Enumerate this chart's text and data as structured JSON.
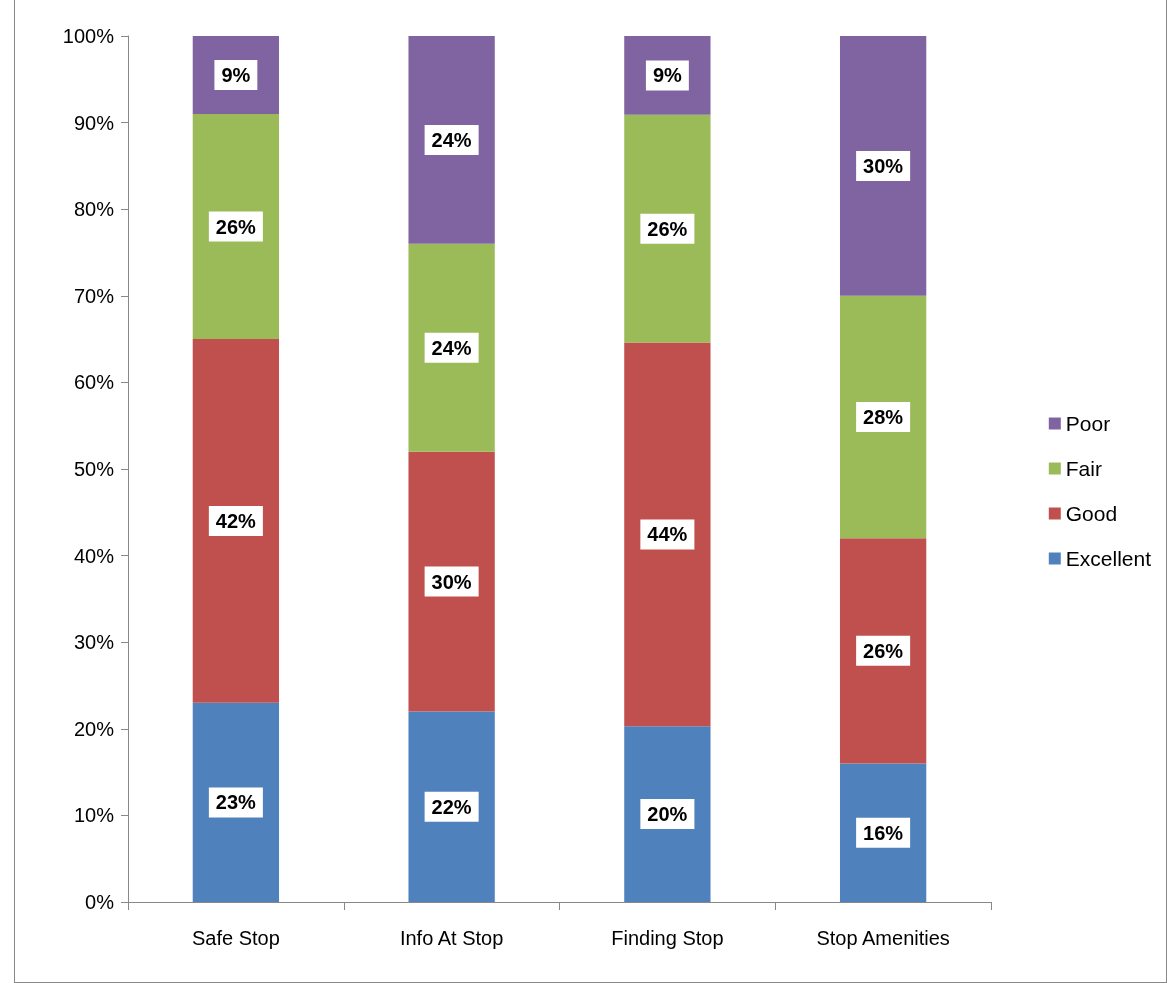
{
  "chart_data": {
    "type": "bar",
    "stacked": true,
    "categories": [
      "Safe Stop",
      "Info At Stop",
      "Finding Stop",
      "Stop Amenities"
    ],
    "series": [
      {
        "name": "Excellent",
        "color": "#4f81bd",
        "values": [
          23,
          22,
          20.3,
          16
        ],
        "value_labels": [
          "23%",
          "22%",
          "20%",
          "16%"
        ]
      },
      {
        "name": "Good",
        "color": "#c0504d",
        "values": [
          42,
          30,
          44.3,
          26
        ],
        "value_labels": [
          "42%",
          "30%",
          "44%",
          "26%"
        ]
      },
      {
        "name": "Fair",
        "color": "#9bbb59",
        "values": [
          26,
          24,
          26.3,
          28
        ],
        "value_labels": [
          "26%",
          "24%",
          "26%",
          "28%"
        ]
      },
      {
        "name": "Poor",
        "color": "#8064a2",
        "values": [
          9,
          24,
          9.1,
          30
        ],
        "value_labels": [
          "9%",
          "24%",
          "9%",
          "30%"
        ]
      }
    ],
    "ylim": [
      0,
      100
    ],
    "yticks": [
      {
        "value": 0,
        "label": "0%"
      },
      {
        "value": 10,
        "label": "10%"
      },
      {
        "value": 20,
        "label": "20%"
      },
      {
        "value": 30,
        "label": "30%"
      },
      {
        "value": 40,
        "label": "40%"
      },
      {
        "value": 50,
        "label": "50%"
      },
      {
        "value": 60,
        "label": "60%"
      },
      {
        "value": 70,
        "label": "70%"
      },
      {
        "value": 80,
        "label": "80%"
      },
      {
        "value": 90,
        "label": "90%"
      },
      {
        "value": 100,
        "label": "100%"
      }
    ],
    "grid": false,
    "legend": "right"
  }
}
